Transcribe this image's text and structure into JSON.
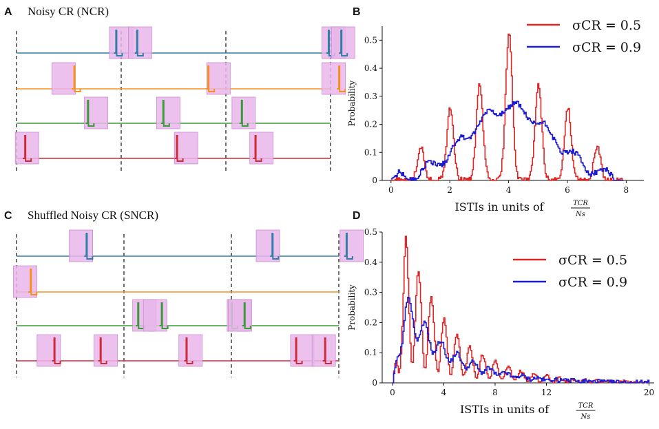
{
  "panels": {
    "A": {
      "letter": "A",
      "title": "Noisy CR (NCR)"
    },
    "B": {
      "letter": "B"
    },
    "C": {
      "letter": "C",
      "title": "Shuffled Noisy CR (SNCR)"
    },
    "D": {
      "letter": "D"
    }
  },
  "colors": {
    "teal": "#2e7fa5",
    "orange": "#f5901e",
    "green": "#3a9a3a",
    "crimson": "#cf2a35",
    "pink": "#e9b6ea",
    "pink_edge": "#c98cd0",
    "red": "#e02424",
    "blue": "#1c1cd6"
  },
  "raster_A": {
    "dividers": [
      0,
      1,
      2,
      3
    ],
    "tracks": [
      {
        "color": "teal",
        "events": [
          [
            1.0,
            0.95
          ],
          [
            1.18,
            1.15
          ],
          [
            3.03,
            2.98
          ],
          [
            3.12,
            3.1
          ]
        ]
      },
      {
        "color": "orange",
        "events": [
          [
            0.45,
            0.55
          ],
          [
            1.93,
            1.83
          ],
          [
            3.03,
            3.08
          ]
        ]
      },
      {
        "color": "green",
        "events": [
          [
            0.76,
            0.68
          ],
          [
            1.45,
            1.4
          ],
          [
            2.17,
            2.15
          ]
        ]
      },
      {
        "color": "crimson",
        "events": [
          [
            0.1,
            0.08
          ],
          [
            1.62,
            1.53
          ],
          [
            2.34,
            2.28
          ]
        ]
      }
    ]
  },
  "raster_C": {
    "dividers": [
      0,
      1,
      2,
      3
    ],
    "tracks": [
      {
        "color": "teal",
        "events": [
          [
            0.6,
            0.65
          ],
          [
            2.34,
            2.38
          ],
          [
            3.12,
            3.07
          ]
        ]
      },
      {
        "color": "orange",
        "events": [
          [
            0.08,
            0.13
          ]
        ]
      },
      {
        "color": "green",
        "events": [
          [
            1.19,
            1.13
          ],
          [
            1.29,
            1.35
          ],
          [
            2.07,
            2.0
          ],
          [
            2.08,
            2.12
          ]
        ]
      },
      {
        "color": "crimson",
        "events": [
          [
            0.3,
            0.35
          ],
          [
            0.83,
            0.78
          ],
          [
            1.62,
            1.58
          ],
          [
            2.66,
            2.6
          ],
          [
            2.86,
            2.87
          ]
        ]
      }
    ]
  },
  "chart_data": [
    {
      "panel": "B",
      "type": "line",
      "xlabel": "ISTIs in units of",
      "xlabel_frac": {
        "num": "TCR",
        "den": "Ns"
      },
      "ylabel": "Probability",
      "xlim": [
        -0.3,
        8.6
      ],
      "ylim": [
        0,
        0.55
      ],
      "xticks": [
        "0",
        "2",
        "4",
        "6",
        "8"
      ],
      "yticks": [
        "0",
        "0.1",
        "0.2",
        "0.3",
        "0.4",
        "0.5"
      ],
      "legend": [
        {
          "text": "σCR = 0.5",
          "color": "red"
        },
        {
          "text": "σCR = 0.9",
          "color": "blue"
        }
      ],
      "series": [
        {
          "name": "σCR = 0.5",
          "color": "red",
          "kind": "peaks",
          "xmin": 0,
          "xmax": 7.9,
          "peaks": [
            [
              1,
              0.12
            ],
            [
              2,
              0.26
            ],
            [
              3,
              0.34
            ],
            [
              4,
              0.53
            ],
            [
              5,
              0.34
            ],
            [
              6,
              0.26
            ],
            [
              7,
              0.12
            ]
          ]
        },
        {
          "name": "σCR = 0.9",
          "color": "blue",
          "kind": "smooth",
          "xmin": 0,
          "xmax": 7.9,
          "center": 4,
          "height": 0.26,
          "width": 2.6,
          "ripple": 0.02
        }
      ]
    },
    {
      "panel": "D",
      "type": "line",
      "xlabel": "ISTIs in units of",
      "xlabel_frac": {
        "num": "TCR",
        "den": "Ns"
      },
      "ylabel": "Probability",
      "xlim": [
        -0.8,
        20.4
      ],
      "ylim": [
        0,
        0.5
      ],
      "xticks": [
        "0",
        "4",
        "8",
        "12",
        "20"
      ],
      "xtick_values": [
        0,
        4,
        8,
        12,
        20
      ],
      "yticks": [
        "0",
        "0.1",
        "0.2",
        "0.3",
        "0.4",
        "0.5"
      ],
      "legend": [
        {
          "text": "σCR = 0.5",
          "color": "red"
        },
        {
          "text": "σCR = 0.9",
          "color": "blue"
        }
      ],
      "series": [
        {
          "name": "σCR = 0.5",
          "color": "red",
          "kind": "decay-peaks",
          "xmin": 0,
          "xmax": 20,
          "peak_x": 1,
          "peak_y": 0.49,
          "period": 1,
          "decay": 3.6
        },
        {
          "name": "σCR = 0.9",
          "color": "blue",
          "kind": "decay-smooth",
          "xmin": 0,
          "xmax": 20,
          "peak_x": 1,
          "peak_y": 0.3,
          "decay": 3.6
        }
      ]
    }
  ]
}
